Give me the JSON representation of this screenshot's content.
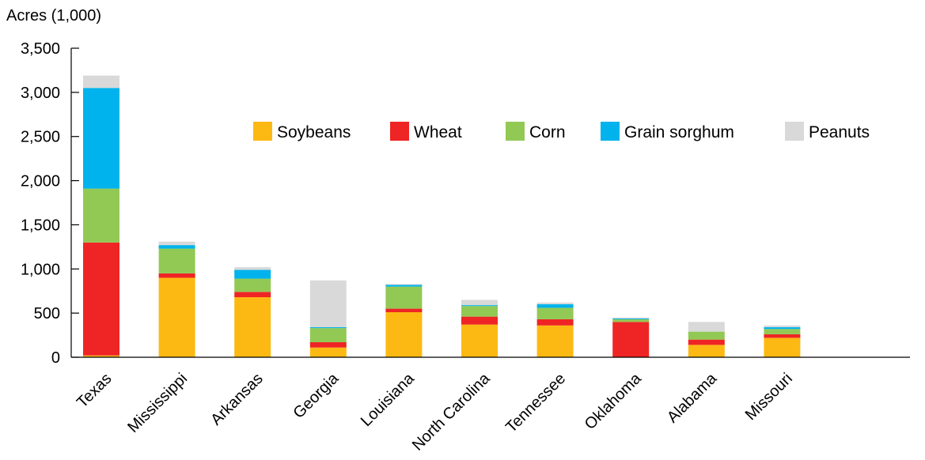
{
  "chart_data": {
    "type": "bar",
    "stacked": true,
    "title": "",
    "xlabel": "",
    "ylabel": "Acres (1,000)",
    "ylim": [
      0,
      3500
    ],
    "yticks": [
      0,
      500,
      1000,
      1500,
      2000,
      2500,
      3000,
      3500
    ],
    "ytick_labels": [
      "0",
      "500",
      "1,000",
      "1,500",
      "2,000",
      "2,500",
      "3,000",
      "3,500"
    ],
    "grid": false,
    "legend_position": "top-right",
    "categories": [
      "Texas",
      "Mississippi",
      "Arkansas",
      "Georgia",
      "Louisiana",
      "North Carolina",
      "Tennessee",
      "Oklahoma",
      "Alabama",
      "Missouri"
    ],
    "series": [
      {
        "name": "Soybeans",
        "color": "#FDB913",
        "values": [
          20,
          900,
          680,
          110,
          510,
          370,
          360,
          0,
          140,
          220
        ]
      },
      {
        "name": "Wheat",
        "color": "#EE2524",
        "values": [
          1280,
          50,
          60,
          60,
          40,
          90,
          70,
          400,
          60,
          40
        ]
      },
      {
        "name": "Corn",
        "color": "#92C955",
        "values": [
          610,
          280,
          150,
          160,
          250,
          120,
          130,
          30,
          90,
          60
        ]
      },
      {
        "name": "Grain sorghum",
        "color": "#00B3EC",
        "values": [
          1140,
          40,
          100,
          10,
          20,
          10,
          40,
          10,
          0,
          20
        ]
      },
      {
        "name": "Peanuts",
        "color": "#D9D9D9",
        "values": [
          140,
          40,
          30,
          530,
          10,
          60,
          20,
          10,
          110,
          20
        ]
      }
    ]
  }
}
